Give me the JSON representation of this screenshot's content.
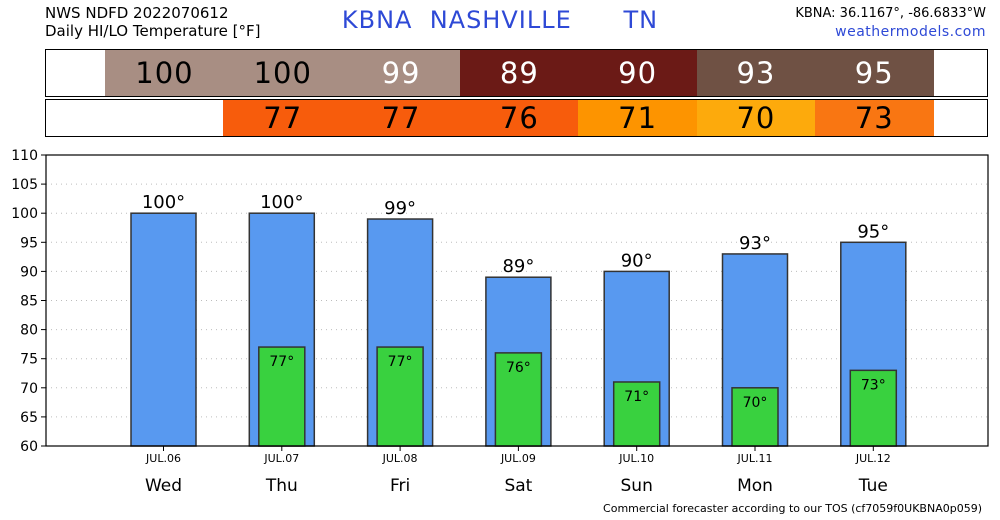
{
  "header": {
    "line1": "NWS NDFD 2022070612",
    "line2": "Daily HI/LO Temperature [°F]",
    "station_title": "KBNA  NASHVILLE      TN",
    "coords": "KBNA: 36.1167°, -86.6833°W",
    "site": "weathermodels.com"
  },
  "colors": {
    "hi_bar": "#5899f0",
    "lo_bar": "#39d13f",
    "hi_strip": [
      "#a88e83",
      "#a88e83",
      "#a88e83",
      "#6b1a16",
      "#6b1a16",
      "#6f5144",
      "#6f5144"
    ],
    "lo_strip": [
      "#ffffff",
      "#f75c0c",
      "#f75c0c",
      "#f75c0c",
      "#fd9400",
      "#fdaa0c",
      "#f97612"
    ],
    "hi_strip_text": [
      "#000000",
      "#000000",
      "#ffffff",
      "#ffffff",
      "#ffffff",
      "#ffffff",
      "#ffffff"
    ]
  },
  "chart_data": {
    "type": "bar",
    "categories": [
      "Wed",
      "Thu",
      "Fri",
      "Sat",
      "Sun",
      "Mon",
      "Tue"
    ],
    "dates": [
      "JUL.06",
      "JUL.07",
      "JUL.08",
      "JUL.09",
      "JUL.10",
      "JUL.11",
      "JUL.12"
    ],
    "series": [
      {
        "values": [
          100,
          100,
          99,
          89,
          90,
          93,
          95
        ],
        "labels": [
          "100°",
          "100°",
          "99°",
          "89°",
          "90°",
          "93°",
          "95°"
        ]
      },
      {
        "values": [
          null,
          77,
          77,
          76,
          71,
          70,
          73
        ],
        "labels": [
          "",
          "77°",
          "77°",
          "76°",
          "71°",
          "70°",
          "73°"
        ]
      }
    ],
    "hi_strip_text": [
      "100",
      "100",
      "99",
      "89",
      "90",
      "93",
      "95"
    ],
    "lo_strip_text": [
      "",
      "77",
      "77",
      "76",
      "71",
      "70",
      "73"
    ],
    "yticks": [
      "60",
      "65",
      "70",
      "75",
      "80",
      "85",
      "90",
      "95",
      "100",
      "105",
      "110"
    ],
    "ylim": [
      60,
      110
    ],
    "grid": true
  },
  "footer": "Commercial forecaster according to our TOS (cf7059f0UKBNA0p059)"
}
